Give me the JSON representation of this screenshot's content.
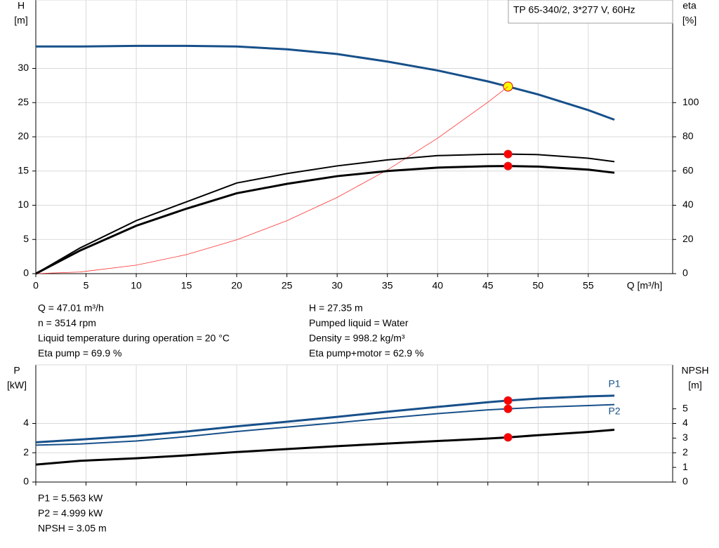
{
  "operating_point": {
    "q": 47.01
  },
  "info_top_left": [
    "Q = 47.01 m³/h",
    "n = 3514 rpm",
    "Liquid temperature during operation = 20 °C",
    "Eta pump = 69.9 %"
  ],
  "info_top_right": [
    "H = 27.35 m",
    "Pumped liquid = Water",
    "Density = 998.2 kg/m³",
    "Eta pump+motor = 62.9 %"
  ],
  "info_bottom": [
    "P1 = 5.563 kW",
    "P2 = 4.999 kW",
    "NPSH = 3.05 m"
  ],
  "chart_data": [
    {
      "type": "line",
      "title": "TP 65-340/2, 3*277 V, 60Hz",
      "y_name": "H",
      "y_unit": "[m]",
      "y2_name": "eta",
      "y2_unit": "[%]",
      "x_label": "Q [m³/h]",
      "x": [
        0,
        4.4,
        10,
        15,
        20,
        25,
        30,
        35,
        40,
        45,
        47.01,
        50,
        55,
        57.6
      ],
      "xlim": [
        0,
        63.4
      ],
      "xticks": [
        0,
        5,
        10,
        15,
        20,
        25,
        30,
        35,
        40,
        45,
        50,
        55
      ],
      "ylim": [
        0,
        40
      ],
      "yticks": [
        0,
        5,
        10,
        15,
        20,
        25,
        30
      ],
      "y2lim": [
        0,
        160
      ],
      "y2ticks": [
        0,
        20,
        40,
        60,
        80,
        100
      ],
      "grid": true,
      "series": [
        {
          "color": "#17508a",
          "width": 3,
          "marker_fill": "#ffff00",
          "values": [
            33.2,
            33.2,
            33.3,
            33.3,
            33.2,
            32.8,
            32.1,
            31.0,
            29.7,
            28.1,
            27.35,
            26.2,
            23.9,
            22.5
          ]
        },
        {
          "color": "#ff3030",
          "width": 0.8,
          "values": [
            0,
            0.24,
            1.24,
            2.78,
            4.95,
            7.74,
            11.14,
            15.16,
            19.8,
            25.06,
            27.35,
            null,
            null,
            null
          ]
        },
        {
          "color": "#000000",
          "width": 2,
          "axis": "y2",
          "marker_fill": "#ff0000",
          "values": [
            0,
            15,
            31,
            42,
            53,
            58.5,
            63,
            66.5,
            69,
            69.8,
            69.9,
            69.6,
            67.5,
            65.5
          ]
        },
        {
          "color": "#000000",
          "width": 3,
          "axis": "y2",
          "marker_fill": "#ff0000",
          "values": [
            0,
            13.5,
            28,
            38,
            47,
            52.5,
            57,
            60,
            62,
            62.8,
            62.9,
            62.6,
            60.8,
            59
          ]
        }
      ]
    },
    {
      "type": "line",
      "y_name": "P",
      "y_unit": "[kW]",
      "y2_name": "NPSH",
      "y2_unit": "[m]",
      "x": [
        0,
        4.4,
        10,
        15,
        20,
        25,
        30,
        35,
        40,
        45,
        47.01,
        50,
        55,
        57.6
      ],
      "xlim": [
        0,
        63.4
      ],
      "xticks": [
        0,
        5,
        10,
        15,
        20,
        25,
        30,
        35,
        40,
        45,
        50,
        55
      ],
      "ylim": [
        0,
        8
      ],
      "yticks": [
        0,
        2,
        4
      ],
      "y2lim": [
        0,
        8
      ],
      "y2ticks": [
        0,
        1,
        2,
        3,
        4,
        5
      ],
      "grid": true,
      "series": [
        {
          "name": "P1",
          "color": "#17508a",
          "width": 3,
          "marker_fill": "#ff0000",
          "values": [
            2.71,
            2.9,
            3.15,
            3.45,
            3.8,
            4.12,
            4.45,
            4.8,
            5.13,
            5.45,
            5.563,
            5.7,
            5.85,
            5.9
          ]
        },
        {
          "name": "P2",
          "color": "#17508a",
          "width": 2,
          "marker_fill": "#ff0000",
          "values": [
            2.52,
            2.6,
            2.8,
            3.1,
            3.45,
            3.75,
            4.05,
            4.37,
            4.67,
            4.93,
            4.999,
            5.1,
            5.22,
            5.29
          ]
        },
        {
          "color": "#000000",
          "width": 3,
          "axis": "y2",
          "marker_fill": "#ff0000",
          "values": [
            1.19,
            1.45,
            1.62,
            1.82,
            2.05,
            2.25,
            2.45,
            2.63,
            2.8,
            2.97,
            3.05,
            3.2,
            3.42,
            3.57
          ]
        }
      ]
    }
  ]
}
